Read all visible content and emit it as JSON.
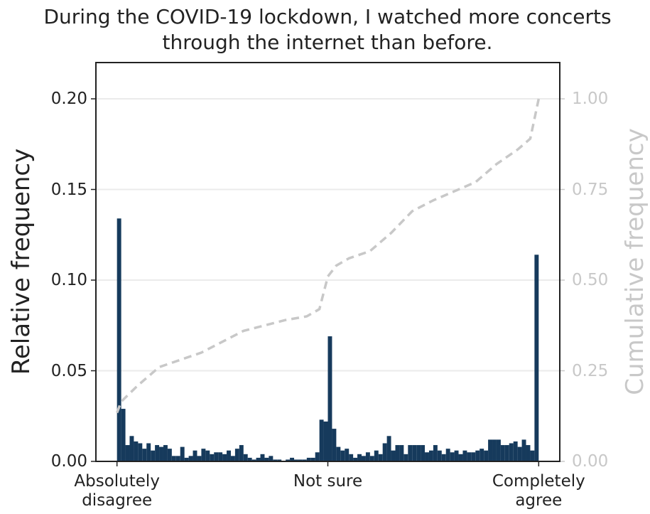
{
  "chart_data": {
    "type": "histogram",
    "title": "During the COVID-19 lockdown, I watched more concerts through the internet than before.",
    "ylabel": "Relative frequency",
    "y2label": "Cumulative frequency",
    "color": "#163a5c",
    "bins": [
      0,
      1,
      2,
      3,
      4,
      5,
      6,
      7,
      8,
      9,
      10,
      11,
      12,
      13,
      14,
      15,
      16,
      17,
      18,
      19,
      20,
      21,
      22,
      23,
      24,
      25,
      26,
      27,
      28,
      29,
      30,
      31,
      32,
      33,
      34,
      35,
      36,
      37,
      38,
      39,
      40,
      41,
      42,
      43,
      44,
      45,
      46,
      47,
      48,
      49,
      50,
      51,
      52,
      53,
      54,
      55,
      56,
      57,
      58,
      59,
      60,
      61,
      62,
      63,
      64,
      65,
      66,
      67,
      68,
      69,
      70,
      71,
      72,
      73,
      74,
      75,
      76,
      77,
      78,
      79,
      80,
      81,
      82,
      83,
      84,
      85,
      86,
      87,
      88,
      89,
      90,
      91,
      92,
      93,
      94,
      95,
      96,
      97,
      98,
      99,
      100
    ],
    "values": [
      0.134,
      0.029,
      0.009,
      0.014,
      0.011,
      0.01,
      0.007,
      0.01,
      0.006,
      0.009,
      0.008,
      0.009,
      0.007,
      0.003,
      0.003,
      0.008,
      0.002,
      0.003,
      0.006,
      0.003,
      0.007,
      0.006,
      0.004,
      0.005,
      0.005,
      0.004,
      0.006,
      0.003,
      0.007,
      0.009,
      0.004,
      0.002,
      0.001,
      0.002,
      0.004,
      0.002,
      0.003,
      0.001,
      0.001,
      0.0,
      0.001,
      0.002,
      0.001,
      0.001,
      0.001,
      0.002,
      0.002,
      0.005,
      0.023,
      0.022,
      0.069,
      0.018,
      0.008,
      0.006,
      0.007,
      0.004,
      0.002,
      0.004,
      0.003,
      0.005,
      0.003,
      0.006,
      0.004,
      0.01,
      0.014,
      0.006,
      0.009,
      0.009,
      0.004,
      0.009,
      0.009,
      0.009,
      0.009,
      0.005,
      0.006,
      0.009,
      0.006,
      0.004,
      0.007,
      0.005,
      0.006,
      0.004,
      0.006,
      0.005,
      0.005,
      0.006,
      0.007,
      0.006,
      0.012,
      0.012,
      0.012,
      0.009,
      0.009,
      0.01,
      0.011,
      0.008,
      0.012,
      0.009,
      0.006,
      0.114
    ],
    "cumulative": {
      "color": "#c8c8c8",
      "axis": "y2",
      "x": [
        0,
        1,
        5,
        10,
        15,
        20,
        25,
        30,
        35,
        40,
        45,
        48,
        50,
        52,
        55,
        60,
        65,
        70,
        75,
        80,
        85,
        90,
        95,
        98,
        100
      ],
      "values": [
        0.134,
        0.165,
        0.21,
        0.26,
        0.28,
        0.3,
        0.33,
        0.36,
        0.375,
        0.39,
        0.4,
        0.42,
        0.51,
        0.54,
        0.56,
        0.58,
        0.63,
        0.69,
        0.72,
        0.745,
        0.77,
        0.82,
        0.86,
        0.89,
        1.0
      ]
    },
    "xlim": [
      -5,
      105
    ],
    "xticks": [
      {
        "value": 0,
        "label": "Absolutely\ndisagree"
      },
      {
        "value": 50,
        "label": "Not sure"
      },
      {
        "value": 100,
        "label": "Completely\nagree"
      }
    ],
    "ylim": [
      0,
      0.22
    ],
    "yticks": [
      {
        "value": 0,
        "label": "0.00"
      },
      {
        "value": 0.05,
        "label": "0.05"
      },
      {
        "value": 0.1,
        "label": "0.10"
      },
      {
        "value": 0.15,
        "label": "0.15"
      },
      {
        "value": 0.2,
        "label": "0.20"
      }
    ],
    "y2lim": [
      0,
      1.1
    ],
    "y2ticks": [
      {
        "value": 0,
        "label": "0.00"
      },
      {
        "value": 0.25,
        "label": "0.25"
      },
      {
        "value": 0.5,
        "label": "0.50"
      },
      {
        "value": 0.75,
        "label": "0.75"
      },
      {
        "value": 1,
        "label": "1.00"
      }
    ],
    "grid": true
  }
}
